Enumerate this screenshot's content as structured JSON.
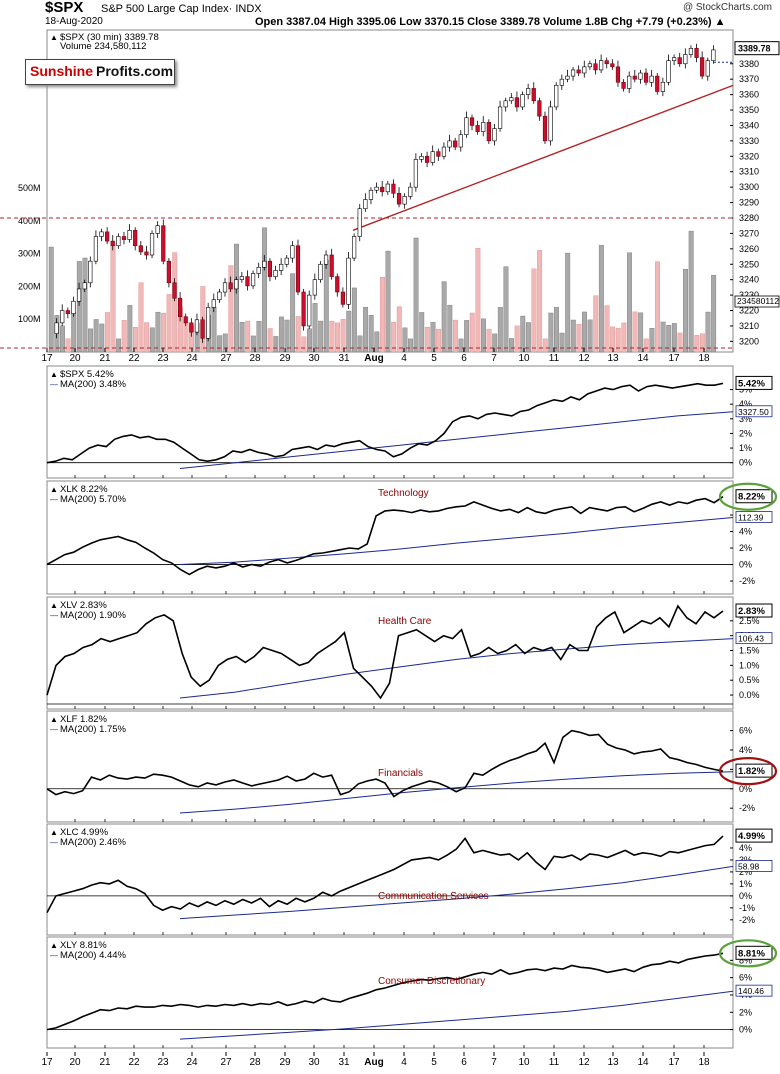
{
  "header": {
    "symbol": "$SPX",
    "description": "S&P 500 Large Cap Index· INDX",
    "date": "18-Aug-2020",
    "ohlc_line": "Open 3387.04  High 3395.06  Low 3370.15  Close 3389.78  Volume 1.8B  Chg +7.79 (+0.23%) ▲",
    "watermark": "@ StockCharts.com"
  },
  "logo": {
    "part1": "Sunshine",
    "part2": "Profits.com"
  },
  "colors": {
    "up": "#000000",
    "down": "#c8102e",
    "trend": "#b22222",
    "ma": "#1a2a8f",
    "vol_up": "#a9a9a9",
    "vol_down": "#f2b8b8",
    "circle_green": "#5aa13a",
    "circle_red": "#a01010"
  },
  "x_axis_labels": [
    "17",
    "20",
    "21",
    "22",
    "23",
    "24",
    "27",
    "28",
    "29",
    "30",
    "31",
    "Aug",
    "4",
    "5",
    "6",
    "7",
    "10",
    "11",
    "12",
    "13",
    "14",
    "17",
    "18"
  ],
  "chart_data": [
    {
      "type": "candlestick",
      "name": "$SPX (30 min)",
      "legend": "$SPX (30 min) 3389.78",
      "volume_legend": "Volume 234,580,112",
      "last_label": "3389.78",
      "volume_last_label": "234580112",
      "interval": "30 min",
      "ylim": [
        3197,
        3398
      ],
      "y_ticks": [
        3200,
        3210,
        3220,
        3230,
        3240,
        3250,
        3260,
        3270,
        3280,
        3290,
        3300,
        3310,
        3320,
        3330,
        3340,
        3350,
        3360,
        3370,
        3380
      ],
      "volume_ticks": [
        {
          "label": "100M",
          "v": 100
        },
        {
          "label": "200M",
          "v": 200
        },
        {
          "label": "300M",
          "v": 300
        },
        {
          "label": "400M",
          "v": 400
        },
        {
          "label": "500M",
          "v": 500
        }
      ],
      "volume_max_millions": 640,
      "close_path": [
        3205,
        3212,
        3220,
        3218,
        3226,
        3234,
        3238,
        3252,
        3268,
        3271,
        3265,
        3262,
        3268,
        3266,
        3272,
        3262,
        3258,
        3256,
        3270,
        3275,
        3252,
        3238,
        3228,
        3216,
        3212,
        3206,
        3214,
        3202,
        3222,
        3227,
        3232,
        3238,
        3234,
        3240,
        3242,
        3236,
        3244,
        3248,
        3252,
        3242,
        3246,
        3250,
        3254,
        3262,
        3232,
        3210,
        3230,
        3240,
        3250,
        3256,
        3242,
        3232,
        3224,
        3254,
        3268,
        3286,
        3292,
        3298,
        3300,
        3297,
        3302,
        3296,
        3289,
        3294,
        3300,
        3318,
        3320,
        3316,
        3323,
        3320,
        3326,
        3330,
        3326,
        3334,
        3345,
        3340,
        3336,
        3342,
        3330,
        3338,
        3352,
        3356,
        3358,
        3352,
        3360,
        3364,
        3356,
        3346,
        3330,
        3352,
        3366,
        3370,
        3372,
        3376,
        3374,
        3378,
        3380,
        3376,
        3382,
        3380,
        3378,
        3368,
        3364,
        3372,
        3370,
        3374,
        3368,
        3372,
        3362,
        3368,
        3382,
        3384,
        3380,
        3386,
        3390,
        3384,
        3372,
        3382,
        3389
      ],
      "support_line": 3280,
      "trendline": {
        "from": 3272,
        "to": 3366
      }
    },
    {
      "type": "line",
      "symbol": "$SPX",
      "legend": "$SPX 5.42%",
      "ma_legend": "MA(200) 3.48%",
      "label": "",
      "last_label": "5.42%",
      "ma_label": "3327.50",
      "circle": "",
      "ylim": [
        -0.5,
        6.2
      ],
      "zero_y": 0,
      "ticks": [
        {
          "t": "0%",
          "v": 0
        },
        {
          "t": "1%",
          "v": 1
        },
        {
          "t": "2%",
          "v": 2
        },
        {
          "t": "3%",
          "v": 3
        },
        {
          "t": "4%",
          "v": 4
        },
        {
          "t": "5%",
          "v": 5
        }
      ],
      "series": [
        0.0,
        0.1,
        0.3,
        0.2,
        0.6,
        1.0,
        1.2,
        1.1,
        1.6,
        1.8,
        1.9,
        1.7,
        1.8,
        1.6,
        1.6,
        1.4,
        1.0,
        0.6,
        0.2,
        0.1,
        0.2,
        0.4,
        0.8,
        0.7,
        0.9,
        0.7,
        0.6,
        0.4,
        0.5,
        0.9,
        1.0,
        1.1,
        0.9,
        1.2,
        1.1,
        1.3,
        1.4,
        1.5,
        1.1,
        0.9,
        0.8,
        0.4,
        0.6,
        1.0,
        1.3,
        1.2,
        1.5,
        2.0,
        2.8,
        3.1,
        3.2,
        3.0,
        3.3,
        3.4,
        3.3,
        3.2,
        3.5,
        3.6,
        3.9,
        4.1,
        4.3,
        4.2,
        4.5,
        4.3,
        4.7,
        4.9,
        5.1,
        5.0,
        5.2,
        5.3,
        4.9,
        5.2,
        5.3,
        5.2,
        5.1,
        5.2,
        5.3,
        5.4,
        5.3,
        5.3,
        5.42
      ],
      "ma": [
        -0.4,
        0.0,
        0.4,
        0.8,
        1.2,
        1.6,
        2.0,
        2.4,
        2.8,
        3.2,
        3.48
      ]
    },
    {
      "type": "line",
      "symbol": "XLK",
      "legend": "XLK 8.22%",
      "ma_legend": "MA(200) 5.70%",
      "label": "Technology",
      "last_label": "8.22%",
      "ma_label": "112.39",
      "circle": "green",
      "ylim": [
        -2.6,
        9.4
      ],
      "zero_y": 0,
      "ticks": [
        {
          "t": "-2%",
          "v": -2
        },
        {
          "t": "0%",
          "v": 0
        },
        {
          "t": "2%",
          "v": 2
        },
        {
          "t": "4%",
          "v": 4
        },
        {
          "t": "6%",
          "v": 6
        }
      ],
      "series": [
        0.0,
        0.6,
        1.2,
        1.5,
        2.1,
        2.6,
        3.0,
        3.2,
        3.4,
        3.0,
        2.7,
        2.0,
        1.4,
        0.6,
        0.2,
        -0.6,
        -1.2,
        -0.6,
        -0.2,
        -0.4,
        -0.2,
        0.2,
        -0.3,
        0.0,
        -0.2,
        0.3,
        0.6,
        0.2,
        0.5,
        0.9,
        1.3,
        1.4,
        1.6,
        1.8,
        2.0,
        1.9,
        2.5,
        5.9,
        6.5,
        6.6,
        6.5,
        6.3,
        6.6,
        6.4,
        6.5,
        6.8,
        7.0,
        7.1,
        7.6,
        7.2,
        6.8,
        6.5,
        6.7,
        6.3,
        6.9,
        6.4,
        6.2,
        6.6,
        6.8,
        7.0,
        6.2,
        6.9,
        6.7,
        6.5,
        6.9,
        7.0,
        6.4,
        6.8,
        7.3,
        7.6,
        7.2,
        7.6,
        7.4,
        7.8,
        8.0,
        7.5,
        8.22
      ],
      "ma": [
        0.0,
        0.3,
        0.8,
        1.3,
        1.9,
        2.6,
        3.2,
        3.8,
        4.5,
        5.1,
        5.7
      ]
    },
    {
      "type": "line",
      "symbol": "XLV",
      "legend": "XLV 2.83%",
      "ma_legend": "MA(200) 1.90%",
      "label": "Health Care",
      "last_label": "2.83%",
      "ma_label": "106.43",
      "circle": "",
      "ylim": [
        -0.2,
        3.1
      ],
      "zero_y": -0.3,
      "ticks": [
        {
          "t": "0.0%",
          "v": 0
        },
        {
          "t": "0.5%",
          "v": 0.5
        },
        {
          "t": "1.0%",
          "v": 1
        },
        {
          "t": "1.5%",
          "v": 1.5
        },
        {
          "t": "2.0%",
          "v": 2
        },
        {
          "t": "2.5%",
          "v": 2.5
        }
      ],
      "series": [
        0.0,
        1.0,
        1.3,
        1.4,
        1.6,
        1.7,
        1.9,
        1.8,
        1.9,
        2.0,
        2.1,
        2.4,
        2.6,
        2.7,
        2.5,
        1.4,
        0.6,
        0.3,
        0.5,
        1.0,
        1.2,
        1.3,
        1.1,
        1.3,
        1.6,
        1.5,
        1.4,
        1.2,
        1.0,
        1.1,
        1.4,
        1.6,
        1.8,
        2.1,
        0.9,
        0.6,
        0.3,
        -0.1,
        0.4,
        2.0,
        2.1,
        2.2,
        2.0,
        1.8,
        2.0,
        1.9,
        2.2,
        1.3,
        1.4,
        1.6,
        1.4,
        1.5,
        1.7,
        1.4,
        1.6,
        1.5,
        1.6,
        1.2,
        1.7,
        1.5,
        1.5,
        2.3,
        2.6,
        2.8,
        2.1,
        2.3,
        2.5,
        2.4,
        2.6,
        2.3,
        3.0,
        2.6,
        2.4,
        2.8,
        2.6,
        2.83
      ],
      "ma": [
        -0.1,
        0.1,
        0.4,
        0.7,
        0.95,
        1.2,
        1.4,
        1.55,
        1.7,
        1.8,
        1.9
      ]
    },
    {
      "type": "line",
      "symbol": "XLF",
      "legend": "XLF 1.82%",
      "ma_legend": "MA(200) 1.75%",
      "label": "Financials",
      "last_label": "1.82%",
      "ma_label": "",
      "circle": "red",
      "ylim": [
        -2.6,
        7.4
      ],
      "zero_y": 0,
      "ticks": [
        {
          "t": "-2%",
          "v": -2
        },
        {
          "t": "0%",
          "v": 0
        },
        {
          "t": "2%",
          "v": 2
        },
        {
          "t": "4%",
          "v": 4
        },
        {
          "t": "6%",
          "v": 6
        }
      ],
      "series": [
        0.0,
        -0.6,
        -0.3,
        -0.5,
        -0.2,
        1.2,
        0.9,
        1.4,
        1.1,
        1.0,
        1.2,
        1.1,
        1.5,
        1.4,
        1.2,
        0.8,
        0.4,
        0.2,
        0.6,
        0.4,
        0.7,
        0.9,
        0.6,
        0.3,
        0.5,
        0.7,
        0.9,
        1.3,
        0.8,
        1.0,
        1.6,
        1.2,
        1.4,
        -0.6,
        -0.3,
        0.5,
        0.8,
        1.0,
        0.6,
        -0.8,
        -0.2,
        0.2,
        0.5,
        0.8,
        0.6,
        0.2,
        -0.3,
        0.1,
        1.6,
        1.4,
        2.0,
        2.5,
        2.9,
        3.2,
        3.6,
        3.9,
        4.7,
        2.7,
        5.3,
        6.0,
        5.8,
        5.5,
        5.6,
        4.6,
        4.2,
        4.0,
        3.6,
        3.8,
        3.9,
        4.1,
        3.2,
        3.0,
        2.7,
        2.5,
        2.2,
        2.0,
        1.82
      ],
      "ma": [
        -2.5,
        -2.1,
        -1.6,
        -1.0,
        -0.4,
        0.1,
        0.6,
        1.0,
        1.35,
        1.6,
        1.75
      ]
    },
    {
      "type": "line",
      "symbol": "XLC",
      "legend": "XLC 4.99%",
      "ma_legend": "MA(200) 2.46%",
      "label": "Communication Services",
      "last_label": "4.99%",
      "ma_label": "58.98",
      "circle": "",
      "ylim": [
        -2.6,
        5.5
      ],
      "zero_y": 0,
      "ticks": [
        {
          "t": "-2%",
          "v": -2
        },
        {
          "t": "-1%",
          "v": -1
        },
        {
          "t": "0%",
          "v": 0
        },
        {
          "t": "1%",
          "v": 1
        },
        {
          "t": "2%",
          "v": 2
        },
        {
          "t": "3%",
          "v": 3
        },
        {
          "t": "4%",
          "v": 4
        }
      ],
      "series": [
        -1.4,
        0.0,
        0.2,
        0.4,
        0.6,
        0.9,
        1.1,
        1.0,
        1.3,
        0.8,
        0.6,
        0.2,
        -0.8,
        -1.2,
        -0.9,
        -1.1,
        -0.6,
        -0.9,
        -0.5,
        -0.8,
        -0.4,
        -0.7,
        -0.3,
        -0.6,
        -0.2,
        -0.9,
        -0.4,
        -0.7,
        -0.2,
        -0.5,
        -0.2,
        0.3,
        0.0,
        0.4,
        0.7,
        1.0,
        1.3,
        1.6,
        1.9,
        2.2,
        2.6,
        3.0,
        3.1,
        3.2,
        3.0,
        3.4,
        3.9,
        4.8,
        3.6,
        3.8,
        3.6,
        3.4,
        3.5,
        3.0,
        3.6,
        2.8,
        2.2,
        3.3,
        3.2,
        3.4,
        3.0,
        3.5,
        3.4,
        3.2,
        3.5,
        3.8,
        3.4,
        3.6,
        3.5,
        3.3,
        3.7,
        3.6,
        3.8,
        4.0,
        4.2,
        4.3,
        4.99
      ],
      "ma": [
        -1.9,
        -1.6,
        -1.3,
        -0.95,
        -0.6,
        -0.25,
        0.15,
        0.6,
        1.1,
        1.75,
        2.46
      ]
    },
    {
      "type": "line",
      "symbol": "XLY",
      "legend": "XLY 8.81%",
      "ma_legend": "MA(200) 4.44%",
      "label": "Consumer Discretionary",
      "last_label": "8.81%",
      "ma_label": "140.46",
      "circle": "green",
      "ylim": [
        -1.2,
        10.0
      ],
      "zero_y": 0,
      "ticks": [
        {
          "t": "0%",
          "v": 0
        },
        {
          "t": "2%",
          "v": 2
        },
        {
          "t": "4%",
          "v": 4
        },
        {
          "t": "6%",
          "v": 6
        },
        {
          "t": "8%",
          "v": 8
        }
      ],
      "series": [
        0.0,
        0.2,
        0.6,
        1.0,
        1.5,
        1.9,
        2.3,
        2.2,
        2.5,
        2.4,
        2.7,
        2.6,
        2.6,
        2.8,
        2.7,
        2.9,
        2.8,
        2.6,
        2.8,
        2.7,
        2.9,
        2.8,
        3.0,
        2.8,
        3.0,
        2.9,
        3.2,
        2.8,
        3.0,
        3.3,
        3.1,
        3.6,
        3.3,
        3.2,
        3.6,
        3.9,
        4.2,
        4.6,
        4.8,
        5.1,
        5.4,
        5.6,
        5.8,
        5.7,
        5.9,
        6.0,
        5.8,
        6.1,
        6.4,
        6.6,
        6.4,
        6.9,
        6.4,
        6.6,
        6.9,
        7.0,
        6.8,
        7.1,
        7.0,
        7.4,
        7.2,
        7.1,
        6.9,
        6.6,
        6.8,
        7.0,
        6.7,
        7.2,
        7.5,
        7.6,
        7.9,
        7.7,
        8.1,
        8.3,
        8.5,
        8.6,
        8.81
      ],
      "ma": [
        -1.1,
        -0.7,
        -0.3,
        0.1,
        0.6,
        1.1,
        1.6,
        2.1,
        2.8,
        3.6,
        4.44
      ]
    }
  ]
}
